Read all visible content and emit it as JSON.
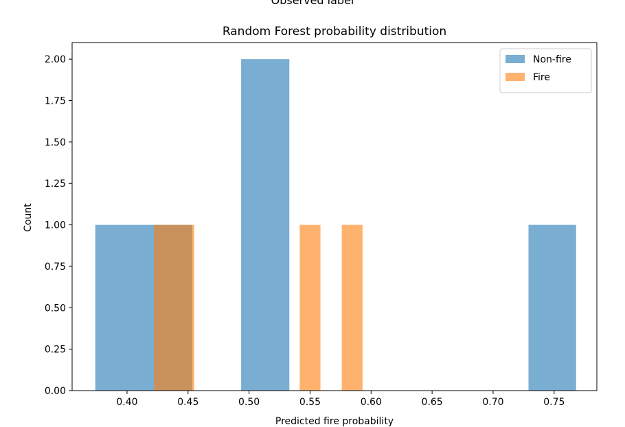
{
  "top_cut_label": "Observed label",
  "chart_data": {
    "type": "bar",
    "title": "Random Forest probability distribution",
    "xlabel": "Predicted fire probability",
    "ylabel": "Count",
    "xlim": [
      0.355,
      0.785
    ],
    "ylim": [
      0,
      2.1
    ],
    "x_ticks": [
      {
        "value": 0.4,
        "label": "0.40"
      },
      {
        "value": 0.45,
        "label": "0.45"
      },
      {
        "value": 0.5,
        "label": "0.50"
      },
      {
        "value": 0.55,
        "label": "0.55"
      },
      {
        "value": 0.6,
        "label": "0.60"
      },
      {
        "value": 0.65,
        "label": "0.65"
      },
      {
        "value": 0.7,
        "label": "0.70"
      },
      {
        "value": 0.75,
        "label": "0.75"
      }
    ],
    "y_ticks": [
      {
        "value": 0.0,
        "label": "0.00"
      },
      {
        "value": 0.25,
        "label": "0.25"
      },
      {
        "value": 0.5,
        "label": "0.50"
      },
      {
        "value": 0.75,
        "label": "0.75"
      },
      {
        "value": 1.0,
        "label": "1.00"
      },
      {
        "value": 1.25,
        "label": "1.25"
      },
      {
        "value": 1.5,
        "label": "1.50"
      },
      {
        "value": 1.75,
        "label": "1.75"
      },
      {
        "value": 2.0,
        "label": "2.00"
      }
    ],
    "grid": false,
    "legend_position": "top-right",
    "series": [
      {
        "name": "Non-fire",
        "color": "#1f77b4",
        "alpha": 0.6,
        "bins": [
          {
            "x0": 0.374,
            "x1": 0.4225,
            "count": 1
          },
          {
            "x0": 0.4225,
            "x1": 0.4535,
            "count": 1
          },
          {
            "x0": 0.4935,
            "x1": 0.533,
            "count": 2
          },
          {
            "x0": 0.729,
            "x1": 0.768,
            "count": 1
          }
        ]
      },
      {
        "name": "Fire",
        "color": "#ff7f0e",
        "alpha": 0.6,
        "bins": [
          {
            "x0": 0.422,
            "x1": 0.455,
            "count": 1
          },
          {
            "x0": 0.5415,
            "x1": 0.5585,
            "count": 1
          },
          {
            "x0": 0.576,
            "x1": 0.593,
            "count": 1
          }
        ]
      }
    ]
  }
}
